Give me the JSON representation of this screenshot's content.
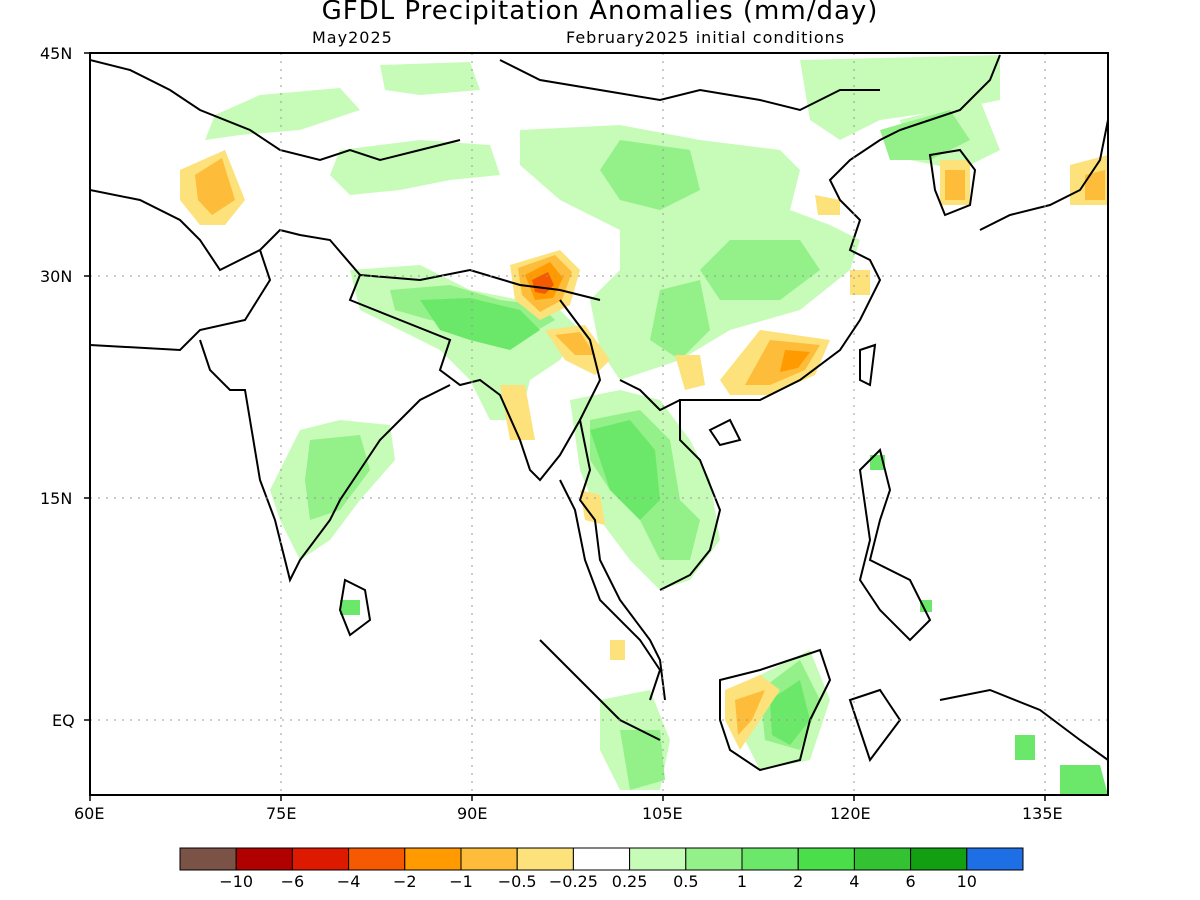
{
  "title": "GFDL Precipitation Anomalies (mm/day)",
  "subtitle_left": "May2025",
  "subtitle_right": "February2025 initial conditions",
  "lat_ticks": [
    "45N",
    "30N",
    "15N",
    "EQ"
  ],
  "lon_ticks": [
    "60E",
    "75E",
    "90E",
    "105E",
    "120E",
    "135E"
  ],
  "colorbar": {
    "colors": [
      "#7a5246",
      "#b00000",
      "#dd1a00",
      "#f55a00",
      "#ff9a00",
      "#fdbc3a",
      "#fde17a",
      "#ffffff",
      "#c6fcb8",
      "#94f088",
      "#6be86a",
      "#4ade4a",
      "#32c232",
      "#12a012",
      "#1e6fe6"
    ],
    "labels": [
      "−10",
      "−6",
      "−4",
      "−2",
      "−1",
      "−0.5",
      "−0.25",
      "0.25",
      "0.5",
      "1",
      "2",
      "4",
      "6",
      "10"
    ]
  },
  "map_extent": {
    "lon_min": 60,
    "lon_max": 140,
    "lat_min": -5,
    "lat_max": 45
  }
}
